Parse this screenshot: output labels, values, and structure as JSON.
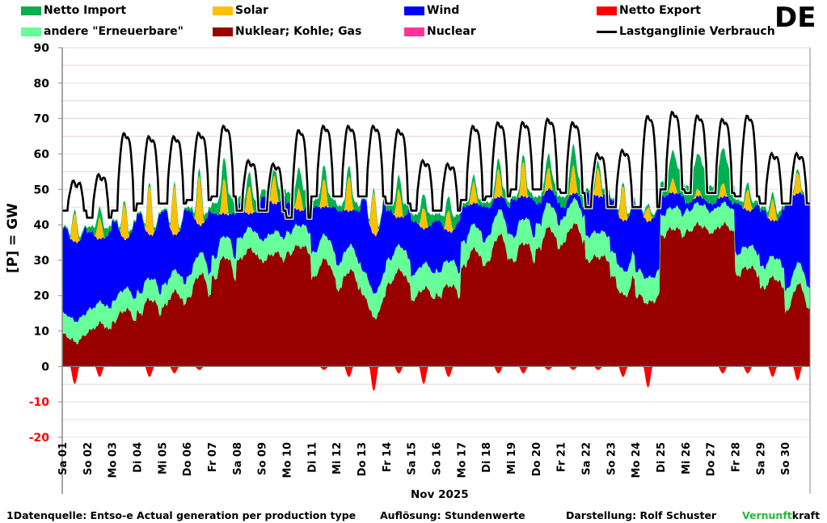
{
  "legend": [
    {
      "label": "Netto Import",
      "color": "#00b050",
      "type": "area"
    },
    {
      "label": "Solar",
      "color": "#ffc000",
      "type": "area"
    },
    {
      "label": "Wind",
      "color": "#0000ff",
      "type": "area"
    },
    {
      "label": "Netto Export",
      "color": "#ff0000",
      "type": "area"
    },
    {
      "label": "andere \"Erneuerbare\"",
      "color": "#66ff99",
      "type": "area"
    },
    {
      "label": "Nuklear; Kohle; Gas",
      "color": "#990000",
      "type": "area"
    },
    {
      "label": "Nuclear",
      "color": "#ff3399",
      "type": "area"
    },
    {
      "label": "Lastganglinie Verbrauch",
      "color": "#000000",
      "type": "line"
    }
  ],
  "country": "DE",
  "footer": {
    "source": "1Datenquelle: Entso-e  Actual generation per production type",
    "resolution": "Auflösung: Stundenwerte",
    "author": "Darstellung:  Rolf Schuster",
    "brand_green": "Vernunft",
    "brand_black": "kraft"
  },
  "chart_data": {
    "type": "area",
    "title": "DE",
    "xlabel": "Nov 2025",
    "ylabel": "[P]  = GW",
    "ylim": [
      -20,
      90
    ],
    "yticks": [
      90,
      80,
      70,
      60,
      50,
      40,
      30,
      20,
      10,
      0,
      -10,
      -20
    ],
    "grid": true,
    "legend_position": "top",
    "categories": [
      "Sa 01",
      "So 02",
      "Mo 03",
      "Di 04",
      "Mi 05",
      "Do 06",
      "Fr 07",
      "Sa 08",
      "So 09",
      "Mo 10",
      "Di 11",
      "Mi 12",
      "Do 13",
      "Fr 14",
      "Sa 15",
      "So 16",
      "Mo 17",
      "Di 18",
      "Mi 19",
      "Do 20",
      "Fr 21",
      "Sa 22",
      "So 23",
      "Mo 24",
      "Di 25",
      "Mi 26",
      "Do 27",
      "Fr 28",
      "Sa 29",
      "So 30"
    ],
    "series_daily": {
      "nuklear_kohle_gas_night": [
        9,
        10,
        13,
        15,
        17,
        20,
        25,
        30,
        30,
        32,
        25,
        22,
        20,
        23,
        19,
        20,
        28,
        30,
        30,
        33,
        35,
        30,
        25,
        20,
        37,
        38,
        38,
        26,
        22,
        16
      ],
      "nuklear_kohle_gas_day": [
        7,
        12,
        16,
        19,
        21,
        26,
        31,
        33,
        32,
        34,
        30,
        27,
        14,
        27,
        22,
        23,
        33,
        37,
        35,
        39,
        40,
        31,
        20,
        18,
        39,
        40,
        40,
        28,
        25,
        23
      ],
      "andere_erneuerbare": [
        6,
        6,
        6,
        6,
        6,
        6,
        6,
        6,
        6,
        6,
        7,
        7,
        7,
        7,
        7,
        7,
        7,
        7,
        7,
        7,
        7,
        7,
        7,
        7,
        6,
        6,
        6,
        6,
        6,
        6
      ],
      "wind_night": [
        24,
        22,
        22,
        22,
        21,
        18,
        12,
        10,
        12,
        8,
        13,
        15,
        20,
        14,
        15,
        14,
        10,
        8,
        10,
        6,
        3,
        12,
        15,
        18,
        5,
        2,
        2,
        14,
        16,
        24
      ],
      "wind_day": [
        22,
        18,
        14,
        12,
        10,
        8,
        6,
        4,
        8,
        4,
        8,
        10,
        16,
        8,
        10,
        8,
        6,
        4,
        6,
        4,
        2,
        10,
        14,
        16,
        4,
        2,
        2,
        10,
        10,
        20
      ],
      "solar_peak": [
        8,
        6,
        10,
        14,
        14,
        14,
        10,
        8,
        8,
        6,
        8,
        10,
        12,
        8,
        6,
        6,
        6,
        8,
        10,
        6,
        8,
        8,
        10,
        4,
        4,
        2,
        4,
        6,
        6,
        6
      ],
      "netto_import": [
        1,
        3,
        1,
        1,
        1,
        2,
        6,
        4,
        4,
        6,
        4,
        3,
        1,
        4,
        4,
        4,
        2,
        3,
        2,
        4,
        6,
        2,
        1,
        1,
        8,
        10,
        10,
        2,
        2,
        1
      ],
      "netto_export_peak": [
        -5,
        -3,
        0,
        -3,
        -2,
        -1,
        0,
        0,
        0,
        0,
        -1,
        -3,
        -7,
        -2,
        -5,
        -3,
        0,
        -2,
        -2,
        -1,
        -1,
        -1,
        -3,
        -6,
        0,
        0,
        -2,
        -2,
        -3,
        -4
      ],
      "load_night": [
        44,
        42,
        44,
        46,
        46,
        47,
        48,
        44,
        44,
        42,
        48,
        48,
        48,
        46,
        44,
        44,
        47,
        48,
        50,
        50,
        49,
        45,
        45,
        45,
        50,
        49,
        49,
        48,
        46,
        46
      ],
      "load_peak": [
        52,
        54,
        66,
        65,
        65,
        66,
        68,
        58,
        57,
        67,
        68,
        68,
        68,
        67,
        58,
        57,
        68,
        69,
        69,
        70,
        69,
        60,
        61,
        71,
        72,
        71,
        70,
        71,
        60,
        60
      ]
    }
  }
}
